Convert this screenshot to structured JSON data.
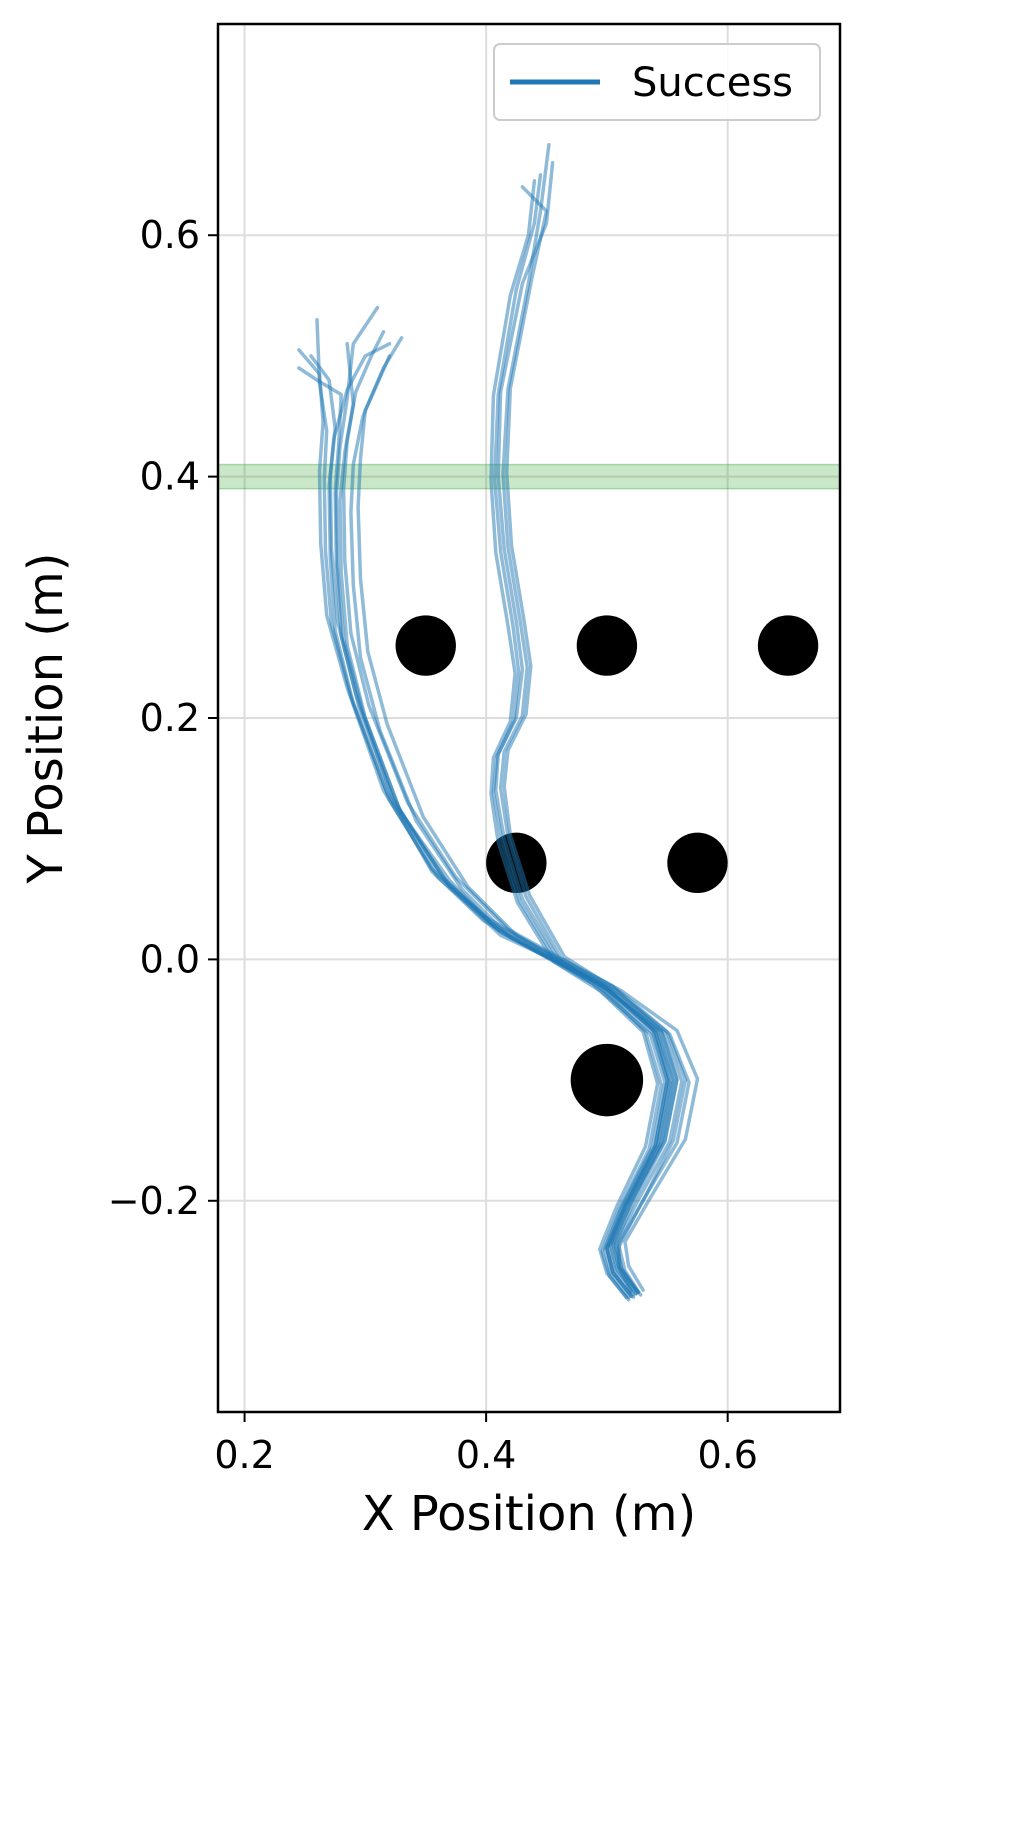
{
  "chart_data": {
    "type": "line",
    "title": "",
    "xlabel": "X Position (m)",
    "ylabel": "Y Position (m)",
    "xlim": [
      0.178,
      0.693
    ],
    "ylim": [
      -0.375,
      0.775
    ],
    "x_ticks": [
      0.2,
      0.4,
      0.6
    ],
    "x_tick_labels": [
      "0.2",
      "0.4",
      "0.6"
    ],
    "y_ticks": [
      -0.2,
      0.0,
      0.2,
      0.4,
      0.6
    ],
    "y_tick_labels": [
      "−0.2",
      "0.0",
      "0.2",
      "0.4",
      "0.6"
    ],
    "grid": true,
    "legend": {
      "position": "top-right",
      "entries": [
        {
          "label": "Success",
          "color": "#1f77b4"
        }
      ]
    },
    "colors": {
      "trajectory": "#1f77b4",
      "obstacle": "#000000",
      "goal_band": "#2ca02c",
      "grid": "#dddddd"
    },
    "goal_band": {
      "y_min": 0.39,
      "y_max": 0.41
    },
    "obstacles": [
      {
        "x": 0.5,
        "y": -0.1,
        "r": 0.03
      },
      {
        "x": 0.425,
        "y": 0.08,
        "r": 0.025
      },
      {
        "x": 0.575,
        "y": 0.08,
        "r": 0.025
      },
      {
        "x": 0.35,
        "y": 0.26,
        "r": 0.025
      },
      {
        "x": 0.5,
        "y": 0.26,
        "r": 0.025
      },
      {
        "x": 0.65,
        "y": 0.26,
        "r": 0.025
      }
    ],
    "series": [
      {
        "x": [
          0.525,
          0.51,
          0.505,
          0.52,
          0.548,
          0.558,
          0.545,
          0.5,
          0.455,
          0.412,
          0.37,
          0.33,
          0.3,
          0.285,
          0.28,
          0.279,
          0.283,
          0.29,
          0.285
        ],
        "y": [
          -0.275,
          -0.255,
          -0.235,
          -0.2,
          -0.15,
          -0.1,
          -0.06,
          -0.025,
          0.0,
          0.02,
          0.06,
          0.12,
          0.2,
          0.26,
          0.32,
          0.38,
          0.42,
          0.46,
          0.51
        ]
      },
      {
        "x": [
          0.52,
          0.51,
          0.51,
          0.53,
          0.555,
          0.565,
          0.55,
          0.505,
          0.46,
          0.418,
          0.375,
          0.335,
          0.303,
          0.288,
          0.283,
          0.282,
          0.285,
          0.292,
          0.305,
          0.315
        ],
        "y": [
          -0.275,
          -0.255,
          -0.235,
          -0.2,
          -0.15,
          -0.1,
          -0.06,
          -0.022,
          0.002,
          0.025,
          0.068,
          0.13,
          0.21,
          0.27,
          0.33,
          0.39,
          0.43,
          0.47,
          0.5,
          0.52
        ]
      },
      {
        "x": [
          0.522,
          0.505,
          0.5,
          0.515,
          0.54,
          0.55,
          0.538,
          0.495,
          0.45,
          0.405,
          0.362,
          0.322,
          0.292,
          0.277,
          0.272,
          0.271,
          0.275,
          0.27,
          0.255
        ],
        "y": [
          -0.28,
          -0.26,
          -0.24,
          -0.205,
          -0.155,
          -0.1,
          -0.058,
          -0.02,
          0.005,
          0.03,
          0.07,
          0.135,
          0.22,
          0.28,
          0.34,
          0.4,
          0.44,
          0.48,
          0.5
        ]
      },
      {
        "x": [
          0.528,
          0.515,
          0.51,
          0.528,
          0.558,
          0.568,
          0.552,
          0.51,
          0.462,
          0.42,
          0.38,
          0.342,
          0.312,
          0.296,
          0.29,
          0.288,
          0.29,
          0.298,
          0.32
        ],
        "y": [
          -0.278,
          -0.258,
          -0.238,
          -0.203,
          -0.152,
          -0.102,
          -0.062,
          -0.028,
          -0.004,
          0.018,
          0.058,
          0.115,
          0.19,
          0.25,
          0.31,
          0.37,
          0.41,
          0.45,
          0.5
        ]
      },
      {
        "x": [
          0.518,
          0.502,
          0.496,
          0.51,
          0.535,
          0.545,
          0.532,
          0.49,
          0.445,
          0.4,
          0.355,
          0.315,
          0.285,
          0.268,
          0.263,
          0.262,
          0.265,
          0.262,
          0.245
        ],
        "y": [
          -0.282,
          -0.262,
          -0.242,
          -0.207,
          -0.157,
          -0.104,
          -0.06,
          -0.018,
          0.008,
          0.035,
          0.075,
          0.14,
          0.225,
          0.285,
          0.345,
          0.405,
          0.445,
          0.485,
          0.505
        ]
      },
      {
        "x": [
          0.526,
          0.512,
          0.508,
          0.525,
          0.552,
          0.562,
          0.548,
          0.502,
          0.456,
          0.413,
          0.368,
          0.328,
          0.298,
          0.282,
          0.277,
          0.276,
          0.279,
          0.285,
          0.29,
          0.31
        ],
        "y": [
          -0.276,
          -0.256,
          -0.236,
          -0.201,
          -0.151,
          -0.101,
          -0.061,
          -0.024,
          0.0,
          0.022,
          0.063,
          0.125,
          0.205,
          0.265,
          0.325,
          0.385,
          0.425,
          0.465,
          0.51,
          0.54
        ]
      },
      {
        "x": [
          0.53,
          0.518,
          0.515,
          0.535,
          0.565,
          0.575,
          0.558,
          0.512,
          0.465,
          0.425,
          0.385,
          0.348,
          0.318,
          0.302,
          0.296,
          0.294,
          0.296,
          0.3,
          0.315,
          0.33
        ],
        "y": [
          -0.274,
          -0.254,
          -0.234,
          -0.199,
          -0.149,
          -0.099,
          -0.059,
          -0.026,
          -0.002,
          0.02,
          0.06,
          0.118,
          0.195,
          0.255,
          0.315,
          0.375,
          0.415,
          0.455,
          0.49,
          0.515
        ]
      },
      {
        "x": [
          0.516,
          0.5,
          0.494,
          0.508,
          0.532,
          0.542,
          0.53,
          0.488,
          0.442,
          0.398,
          0.355,
          0.318,
          0.288,
          0.272,
          0.267,
          0.266,
          0.268,
          0.262,
          0.26
        ],
        "y": [
          -0.28,
          -0.26,
          -0.24,
          -0.205,
          -0.155,
          -0.103,
          -0.06,
          -0.02,
          0.006,
          0.032,
          0.073,
          0.138,
          0.218,
          0.278,
          0.338,
          0.398,
          0.438,
          0.478,
          0.53
        ]
      },
      {
        "x": [
          0.524,
          0.508,
          0.503,
          0.518,
          0.545,
          0.555,
          0.542,
          0.498,
          0.452,
          0.41,
          0.37,
          0.325,
          0.295,
          0.28,
          0.276,
          0.275,
          0.278,
          0.28,
          0.26,
          0.245
        ],
        "y": [
          -0.277,
          -0.257,
          -0.237,
          -0.202,
          -0.152,
          -0.1,
          -0.059,
          -0.023,
          0.001,
          0.024,
          0.065,
          0.128,
          0.208,
          0.268,
          0.328,
          0.388,
          0.428,
          0.468,
          0.48,
          0.49
        ]
      },
      {
        "x": [
          0.52,
          0.505,
          0.5,
          0.515,
          0.542,
          0.552,
          0.54,
          0.497,
          0.45,
          0.407,
          0.36,
          0.32,
          0.29,
          0.275,
          0.271,
          0.27,
          0.274,
          0.285,
          0.3,
          0.32
        ],
        "y": [
          -0.279,
          -0.259,
          -0.239,
          -0.204,
          -0.154,
          -0.102,
          -0.06,
          -0.021,
          0.003,
          0.027,
          0.068,
          0.132,
          0.212,
          0.272,
          0.332,
          0.392,
          0.432,
          0.472,
          0.5,
          0.51
        ]
      },
      {
        "x": [
          0.522,
          0.507,
          0.502,
          0.516,
          0.542,
          0.552,
          0.54,
          0.5,
          0.46,
          0.43,
          0.415,
          0.408,
          0.41,
          0.425,
          0.43,
          0.425,
          0.415,
          0.41,
          0.412,
          0.43,
          0.45,
          0.455
        ],
        "y": [
          -0.278,
          -0.258,
          -0.238,
          -0.203,
          -0.153,
          -0.1,
          -0.06,
          -0.025,
          0.0,
          0.05,
          0.1,
          0.14,
          0.17,
          0.2,
          0.24,
          0.28,
          0.34,
          0.4,
          0.47,
          0.56,
          0.61,
          0.66
        ]
      },
      {
        "x": [
          0.524,
          0.51,
          0.505,
          0.52,
          0.545,
          0.555,
          0.542,
          0.502,
          0.462,
          0.433,
          0.418,
          0.412,
          0.415,
          0.43,
          0.434,
          0.428,
          0.418,
          0.414,
          0.418,
          0.435,
          0.445,
          0.452
        ],
        "y": [
          -0.277,
          -0.257,
          -0.237,
          -0.202,
          -0.152,
          -0.1,
          -0.06,
          -0.024,
          0.001,
          0.052,
          0.102,
          0.142,
          0.172,
          0.202,
          0.242,
          0.282,
          0.342,
          0.402,
          0.472,
          0.56,
          0.62,
          0.675
        ]
      },
      {
        "x": [
          0.52,
          0.505,
          0.5,
          0.514,
          0.54,
          0.55,
          0.538,
          0.498,
          0.458,
          0.428,
          0.413,
          0.406,
          0.409,
          0.423,
          0.427,
          0.422,
          0.412,
          0.407,
          0.41,
          0.425,
          0.44,
          0.445
        ],
        "y": [
          -0.279,
          -0.259,
          -0.239,
          -0.204,
          -0.154,
          -0.101,
          -0.061,
          -0.026,
          -0.001,
          0.048,
          0.098,
          0.138,
          0.168,
          0.198,
          0.238,
          0.278,
          0.338,
          0.398,
          0.468,
          0.555,
          0.61,
          0.65
        ]
      },
      {
        "x": [
          0.526,
          0.512,
          0.507,
          0.522,
          0.548,
          0.558,
          0.545,
          0.505,
          0.465,
          0.436,
          0.42,
          0.415,
          0.418,
          0.433,
          0.437,
          0.431,
          0.421,
          0.417,
          0.42,
          0.438,
          0.45,
          0.43
        ],
        "y": [
          -0.276,
          -0.256,
          -0.236,
          -0.201,
          -0.151,
          -0.099,
          -0.059,
          -0.023,
          0.002,
          0.053,
          0.103,
          0.143,
          0.173,
          0.203,
          0.243,
          0.283,
          0.343,
          0.403,
          0.473,
          0.565,
          0.62,
          0.64
        ]
      },
      {
        "x": [
          0.518,
          0.503,
          0.498,
          0.512,
          0.538,
          0.548,
          0.536,
          0.496,
          0.456,
          0.426,
          0.41,
          0.404,
          0.406,
          0.42,
          0.424,
          0.418,
          0.408,
          0.404,
          0.406,
          0.42,
          0.435,
          0.44
        ],
        "y": [
          -0.28,
          -0.26,
          -0.24,
          -0.205,
          -0.155,
          -0.102,
          -0.062,
          -0.027,
          -0.002,
          0.047,
          0.097,
          0.137,
          0.167,
          0.197,
          0.237,
          0.277,
          0.337,
          0.397,
          0.467,
          0.55,
          0.6,
          0.645
        ]
      }
    ]
  }
}
